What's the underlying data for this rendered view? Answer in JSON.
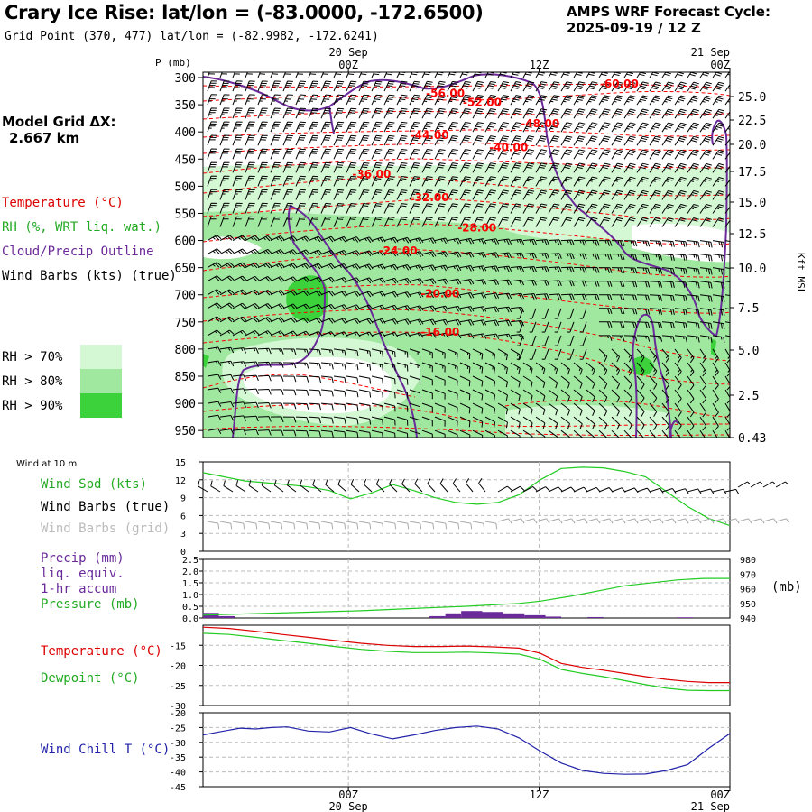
{
  "header": {
    "title": "Crary Ice Rise:  lat/lon = (-83.0000, -172.6500)",
    "grid_point": "Grid Point (370, 477) lat/lon = (-82.9982, -172.6241)",
    "cycle_label": "AMPS WRF Forecast Cycle:",
    "cycle_value": "2025-09-19 / 12  Z",
    "model_grid_label": "Model Grid ΔX:",
    "model_grid_value": "2.667 km"
  },
  "legend": {
    "temperature": "Temperature (°C)",
    "rh": "RH (%, WRT liq. wat.)",
    "cloud": "Cloud/Precip Outline",
    "wind": "Wind Barbs (kts) (true)",
    "rh70": "RH > 70%",
    "rh80": "RH > 80%",
    "rh90": "RH > 90%"
  },
  "colors": {
    "temperature": "#ff0000",
    "cloud": "#6a2a9a",
    "rh70": "#d4f7d4",
    "rh80": "#a0e8a0",
    "rh90": "#3cd23c",
    "wind_speed": "#22cc22",
    "wind_grid": "#aaaaaa",
    "precip": "#6a2a9a",
    "dewpoint": "#22cc22",
    "windchill": "#2222aa"
  },
  "time_axis": {
    "top": [
      {
        "frac": 0.2759,
        "line1": "20 Sep",
        "line2": "00Z"
      },
      {
        "frac": 0.6379,
        "line1": "",
        "line2": "12Z"
      },
      {
        "frac": 1.0,
        "line1": "21 Sep",
        "line2": "00Z"
      }
    ],
    "bottom": [
      {
        "frac": 0.2759,
        "line1": "00Z",
        "line2": "20 Sep"
      },
      {
        "frac": 0.6379,
        "line1": "12Z",
        "line2": ""
      },
      {
        "frac": 1.0,
        "line1": "00Z",
        "line2": "21 Sep"
      }
    ]
  },
  "chart_data": [
    {
      "type": "contour",
      "name": "cross_section",
      "ylabel_left": "P (mb)",
      "ylabel_right": "Kft MSL",
      "pressure_ticks": [
        300,
        350,
        400,
        450,
        500,
        550,
        600,
        650,
        700,
        750,
        800,
        850,
        900,
        950
      ],
      "height_ticks": [
        "25.0",
        "22.5",
        "20.0",
        "17.5",
        "15.0",
        "12.5",
        "10.0",
        "7.5",
        "5.0",
        "2.5",
        "0.43"
      ],
      "temperature_labels": [
        {
          "t": 0.46,
          "p": 327,
          "label": "-56.00"
        },
        {
          "t": 0.79,
          "p": 310,
          "label": "-60.00"
        },
        {
          "t": 0.53,
          "p": 344,
          "label": "-52.00"
        },
        {
          "t": 0.64,
          "p": 383,
          "label": "-48.00"
        },
        {
          "t": 0.43,
          "p": 405,
          "label": "-44.00"
        },
        {
          "t": 0.58,
          "p": 427,
          "label": "-40.00"
        },
        {
          "t": 0.32,
          "p": 476,
          "label": "-36.00"
        },
        {
          "t": 0.43,
          "p": 519,
          "label": "-32.00"
        },
        {
          "t": 0.52,
          "p": 575,
          "label": "-28.00"
        },
        {
          "t": 0.37,
          "p": 617,
          "label": "-24.00"
        },
        {
          "t": 0.45,
          "p": 696,
          "label": "-20.00"
        },
        {
          "t": 0.45,
          "p": 767,
          "label": "-16.00"
        }
      ]
    },
    {
      "type": "line",
      "name": "wind_10m",
      "panel_label": "Wind at 10 m",
      "series_labels": {
        "speed": "Wind Spd (kts)",
        "barbs_true": "Wind Barbs (true)",
        "barbs_grid": "Wind Barbs (grid)"
      },
      "ylim": [
        0,
        15
      ],
      "yticks": [
        0,
        3,
        6,
        9,
        12,
        15
      ],
      "x": [
        0,
        0.04,
        0.08,
        0.12,
        0.16,
        0.2,
        0.24,
        0.28,
        0.32,
        0.36,
        0.4,
        0.44,
        0.48,
        0.52,
        0.56,
        0.6,
        0.64,
        0.68,
        0.72,
        0.76,
        0.8,
        0.84,
        0.88,
        0.92,
        0.96,
        1.0
      ],
      "wind_speed": [
        13.2,
        12.5,
        11.8,
        11.5,
        11.2,
        10.8,
        10.2,
        8.8,
        9.8,
        11.2,
        10.2,
        9.0,
        8.2,
        7.9,
        8.2,
        9.5,
        12.0,
        13.9,
        14.1,
        14.0,
        13.4,
        12.5,
        10.0,
        7.5,
        5.5,
        4.3
      ]
    },
    {
      "type": "line",
      "name": "precip_pressure",
      "series_labels": {
        "precip": "Precip (mm)",
        "precip2": "liq. equiv.",
        "precip3": "1-hr accum",
        "pressure": "Pressure (mb)"
      },
      "unit_right": "(mb)",
      "ylim_left": [
        0,
        2.5
      ],
      "yticks_left": [
        "0.0",
        "0.5",
        "1.0",
        "1.5",
        "2.0",
        "2.5"
      ],
      "ylim_right": [
        940,
        980
      ],
      "yticks_right": [
        940,
        950,
        960,
        970,
        980
      ],
      "x": [
        0,
        0.1,
        0.2,
        0.3,
        0.4,
        0.5,
        0.6,
        0.64,
        0.7,
        0.8,
        0.9,
        0.95,
        1.0
      ],
      "pressure": [
        942,
        943,
        944,
        945,
        946.5,
        948,
        950,
        951.5,
        955,
        962,
        966,
        967,
        967
      ],
      "precip_bars": [
        {
          "x0": 0.0,
          "x1": 0.03,
          "v": 0.22
        },
        {
          "x0": 0.03,
          "x1": 0.06,
          "v": 0.08
        },
        {
          "x0": 0.43,
          "x1": 0.46,
          "v": 0.08
        },
        {
          "x0": 0.46,
          "x1": 0.49,
          "v": 0.2
        },
        {
          "x0": 0.49,
          "x1": 0.53,
          "v": 0.3
        },
        {
          "x0": 0.53,
          "x1": 0.57,
          "v": 0.26
        },
        {
          "x0": 0.57,
          "x1": 0.61,
          "v": 0.2
        },
        {
          "x0": 0.61,
          "x1": 0.65,
          "v": 0.12
        },
        {
          "x0": 0.65,
          "x1": 0.68,
          "v": 0.06
        },
        {
          "x0": 0.73,
          "x1": 0.76,
          "v": 0.04
        },
        {
          "x0": 0.9,
          "x1": 0.93,
          "v": 0.03
        }
      ]
    },
    {
      "type": "line",
      "name": "temperature_dewpoint",
      "series_labels": {
        "temperature": "Temperature (°C)",
        "dewpoint": "Dewpoint (°C)"
      },
      "ylim": [
        -30,
        -10
      ],
      "yticks": [
        -30,
        -25,
        -20,
        -15
      ],
      "x": [
        0,
        0.05,
        0.1,
        0.15,
        0.2,
        0.25,
        0.3,
        0.35,
        0.4,
        0.45,
        0.5,
        0.55,
        0.6,
        0.64,
        0.68,
        0.72,
        0.76,
        0.8,
        0.84,
        0.88,
        0.92,
        0.96,
        1.0
      ],
      "temperature": [
        -10.5,
        -10.8,
        -11.5,
        -12.3,
        -13.0,
        -13.8,
        -14.5,
        -15.0,
        -15.3,
        -15.3,
        -15.2,
        -15.4,
        -15.7,
        -17.0,
        -19.5,
        -20.5,
        -21.2,
        -22.0,
        -22.8,
        -23.5,
        -24.0,
        -24.3,
        -24.3
      ],
      "dewpoint": [
        -12.0,
        -12.3,
        -13.0,
        -13.8,
        -14.5,
        -15.3,
        -16.0,
        -16.5,
        -16.8,
        -16.8,
        -16.7,
        -16.9,
        -17.2,
        -18.5,
        -21.0,
        -22.0,
        -22.8,
        -23.8,
        -24.8,
        -25.7,
        -26.2,
        -26.3,
        -26.3
      ]
    },
    {
      "type": "line",
      "name": "wind_chill",
      "series_labels": {
        "windchill": "Wind Chill T (°C)"
      },
      "ylim": [
        -45,
        -20
      ],
      "yticks": [
        -45,
        -40,
        -35,
        -30,
        -25,
        -20
      ],
      "x": [
        0,
        0.03,
        0.07,
        0.1,
        0.13,
        0.16,
        0.2,
        0.24,
        0.28,
        0.32,
        0.36,
        0.4,
        0.44,
        0.48,
        0.52,
        0.56,
        0.6,
        0.64,
        0.68,
        0.72,
        0.76,
        0.8,
        0.84,
        0.88,
        0.92,
        0.96,
        1.0
      ],
      "windchill": [
        -27.5,
        -26.5,
        -25.2,
        -25.5,
        -25.0,
        -24.8,
        -26.2,
        -26.5,
        -25.0,
        -27.2,
        -28.8,
        -27.5,
        -26.0,
        -25.0,
        -24.5,
        -25.5,
        -28.5,
        -33.0,
        -37.0,
        -39.5,
        -40.5,
        -40.8,
        -40.7,
        -39.5,
        -37.5,
        -32.0,
        -27.0
      ]
    }
  ]
}
